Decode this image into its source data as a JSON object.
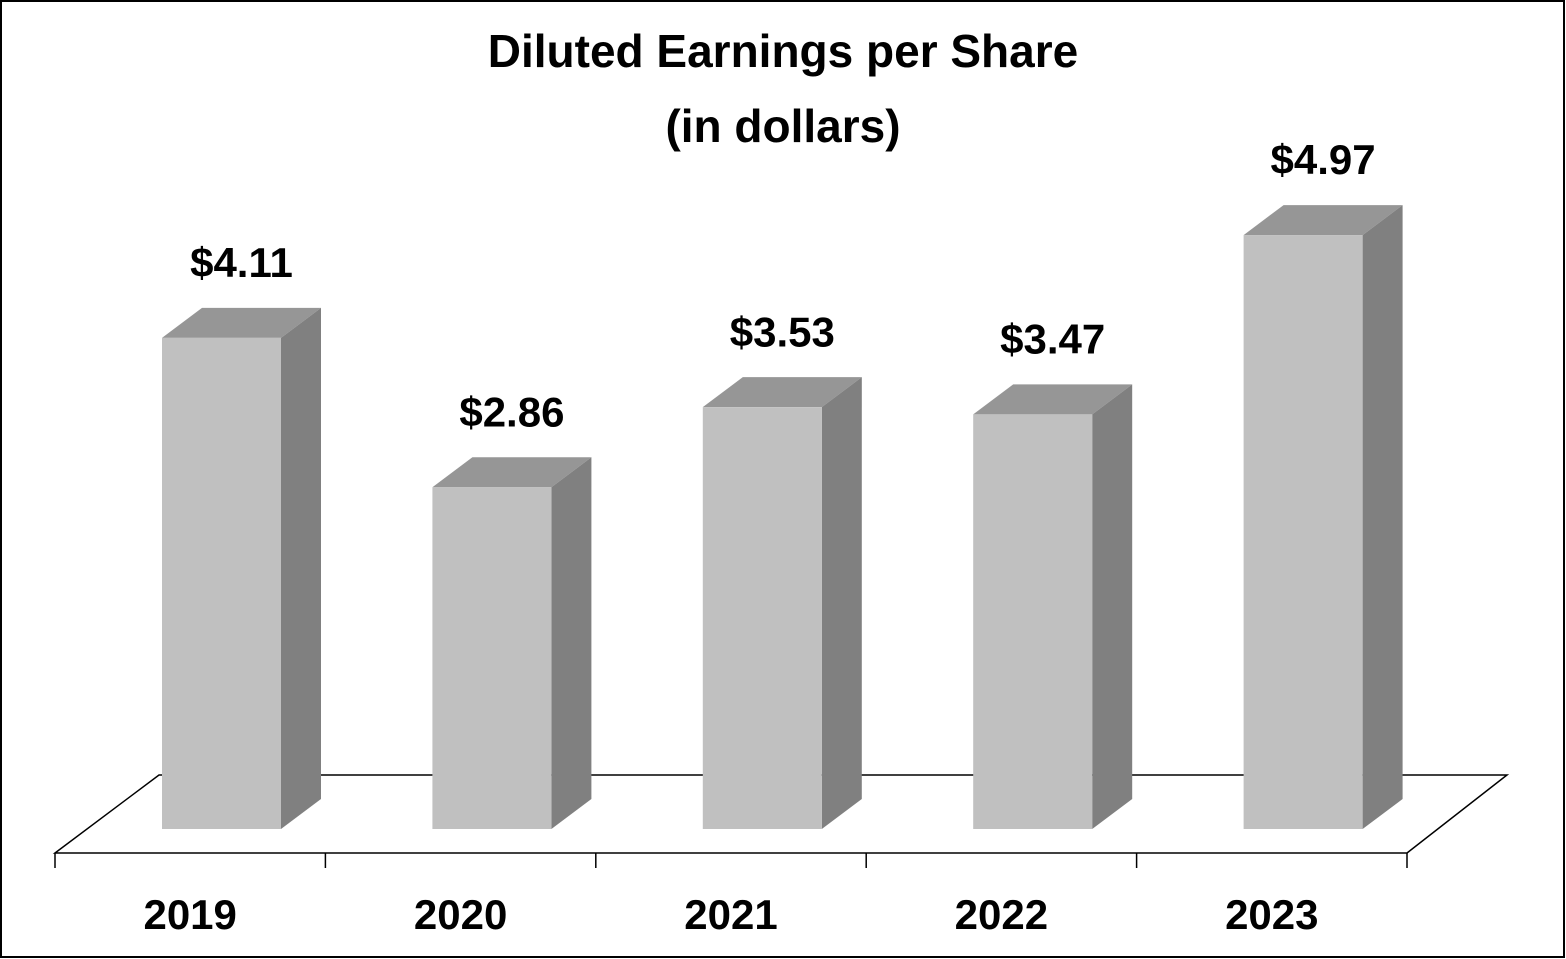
{
  "chart_data": {
    "type": "bar3d",
    "title": "Diluted Earnings per Share",
    "subtitle": "(in dollars)",
    "categories": [
      "2019",
      "2020",
      "2021",
      "2022",
      "2023"
    ],
    "values": [
      4.11,
      2.86,
      3.53,
      3.47,
      4.97
    ],
    "value_labels": [
      "$4.11",
      "$2.86",
      "$3.53",
      "$3.47",
      "$4.97"
    ],
    "color": "#c0c0c0"
  }
}
